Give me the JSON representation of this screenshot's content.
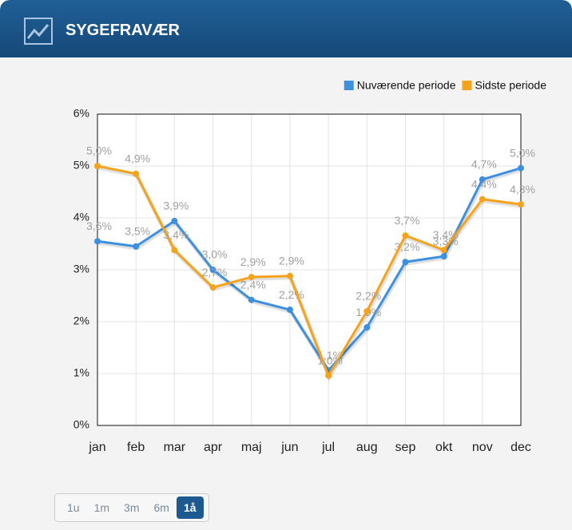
{
  "header": {
    "title": "SYGEFRAVÆR"
  },
  "chart_data": {
    "type": "line",
    "categories": [
      "jan",
      "feb",
      "mar",
      "apr",
      "maj",
      "jun",
      "jul",
      "aug",
      "sep",
      "okt",
      "nov",
      "dec"
    ],
    "series": [
      {
        "name": "Nuværende periode",
        "color": "#3d8fe0",
        "values": [
          3.55,
          3.45,
          3.94,
          3.0,
          2.42,
          2.23,
          1.06,
          1.89,
          3.15,
          3.26,
          4.74,
          4.96
        ],
        "value_labels": [
          "3,6%",
          "3,5%",
          "3,9%",
          "3,0%",
          "2,4%",
          "2,2%",
          "1,1%",
          "1,9%",
          "3,2%",
          "3,3%",
          "4,7%",
          "5,0%"
        ]
      },
      {
        "name": "Sidste periode",
        "color": "#f5a31a",
        "values": [
          5.0,
          4.85,
          3.38,
          2.66,
          2.86,
          2.88,
          0.96,
          2.2,
          3.66,
          3.38,
          4.36,
          4.26
        ],
        "value_labels": [
          "5,0%",
          "4,9%",
          "3,4%",
          "2,7%",
          "2,9%",
          "2,9%",
          "1,0%",
          "2,2%",
          "3,7%",
          "3,4%",
          "4,4%",
          "4,3%"
        ]
      }
    ],
    "ylim": [
      0,
      6
    ],
    "yticks": [
      {
        "value": 0,
        "label": "0%"
      },
      {
        "value": 1,
        "label": "1%"
      },
      {
        "value": 2,
        "label": "2%"
      },
      {
        "value": 3,
        "label": "3%"
      },
      {
        "value": 4,
        "label": "4%"
      },
      {
        "value": 5,
        "label": "5%"
      },
      {
        "value": 6,
        "label": "6%"
      }
    ],
    "grid": true,
    "legend": "top-right"
  },
  "buttons": [
    {
      "label": "1u"
    },
    {
      "label": "1m"
    },
    {
      "label": "3m"
    },
    {
      "label": "6m"
    },
    {
      "label": "1å",
      "active": true
    }
  ]
}
